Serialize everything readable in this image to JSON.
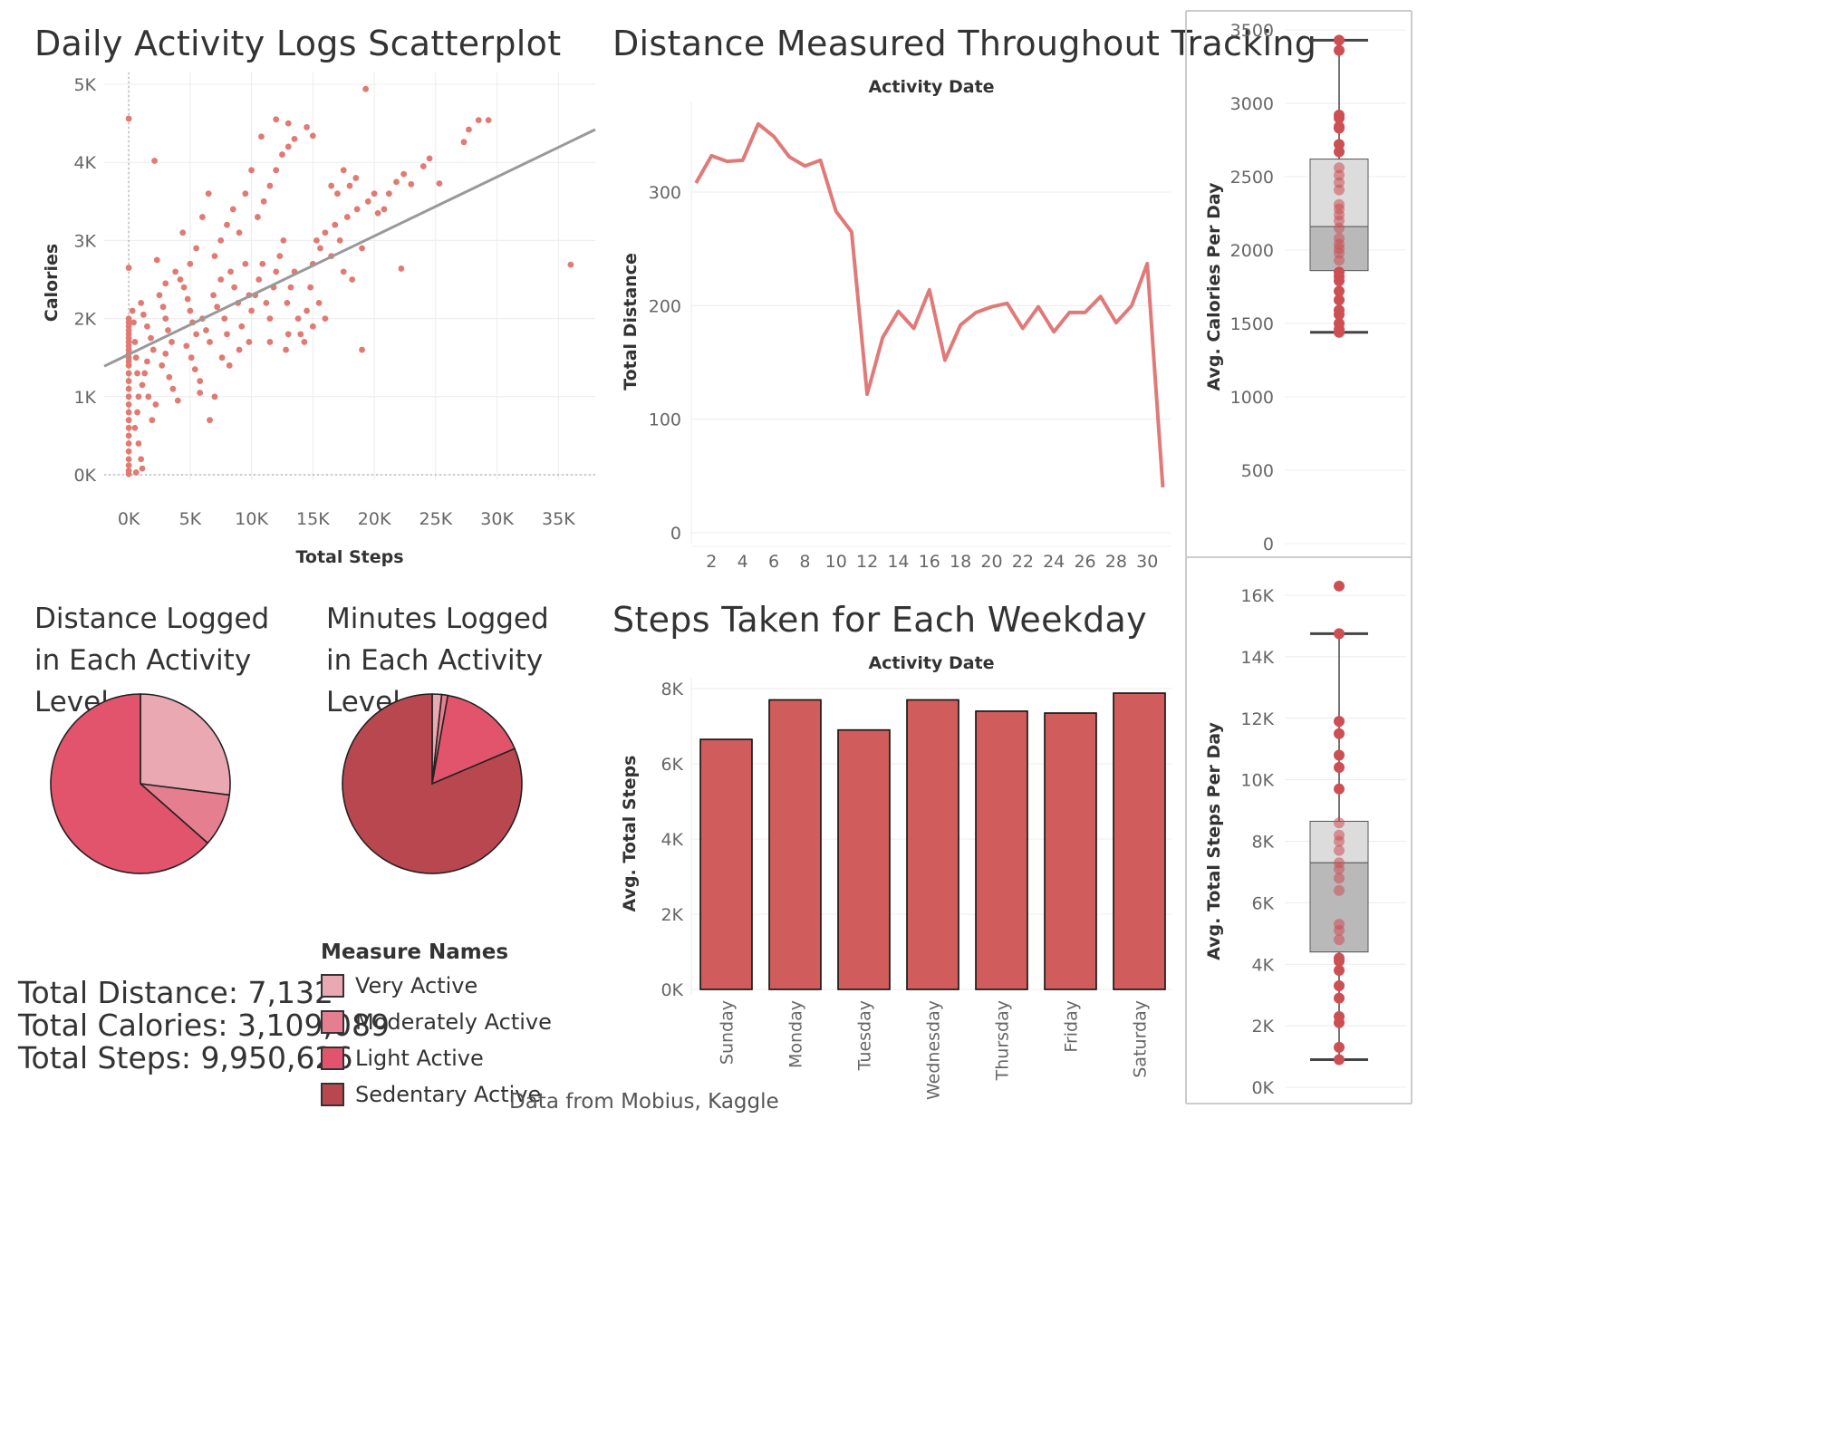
{
  "titles": {
    "scatter": "Daily Activity Logs Scatterplot",
    "line": "Distance Measured Throughout Tracking",
    "pie_distance": "Distance Logged in Each Activity Level",
    "pie_minutes": "Minutes Logged in Each Activity Level",
    "bar": "Steps Taken for Each Weekday"
  },
  "kpis": {
    "distance": "Total Distance: 7,132",
    "calories": "Total Calories: 3,109,089",
    "steps": "Total Steps: 9,950,626"
  },
  "legend": {
    "title": "Measure Names",
    "items": [
      {
        "label": "Very Active",
        "color": "#E9A8B2"
      },
      {
        "label": "Moderately Active",
        "color": "#E57F8F"
      },
      {
        "label": "Light Active",
        "color": "#E2546B"
      },
      {
        "label": "Sedentary Active",
        "color": "#B8474F"
      }
    ]
  },
  "footer": "Data from Mobius, Kaggle",
  "chart_data": [
    {
      "id": "scatter",
      "type": "scatter",
      "title": "Daily Activity Logs Scatterplot",
      "xlabel": "Total Steps",
      "ylabel": "Calories",
      "xlim": [
        -2000,
        38000
      ],
      "ylim": [
        0,
        5000
      ],
      "x_ticks": [
        {
          "v": 0,
          "l": "0K"
        },
        {
          "v": 5000,
          "l": "5K"
        },
        {
          "v": 10000,
          "l": "10K"
        },
        {
          "v": 15000,
          "l": "15K"
        },
        {
          "v": 20000,
          "l": "20K"
        },
        {
          "v": 25000,
          "l": "25K"
        },
        {
          "v": 30000,
          "l": "30K"
        },
        {
          "v": 35000,
          "l": "35K"
        }
      ],
      "y_ticks": [
        {
          "v": 0,
          "l": "0K"
        },
        {
          "v": 1000,
          "l": "1K"
        },
        {
          "v": 2000,
          "l": "2K"
        },
        {
          "v": 3000,
          "l": "3K"
        },
        {
          "v": 4000,
          "l": "4K"
        },
        {
          "v": 5000,
          "l": "5K"
        }
      ],
      "trend_line": [
        [
          -2000,
          1390
        ],
        [
          38000,
          4420
        ]
      ],
      "color": "#E07A72",
      "points": [
        [
          0,
          4560
        ],
        [
          0,
          2650
        ],
        [
          0,
          2000
        ],
        [
          0,
          1950
        ],
        [
          0,
          1900
        ],
        [
          0,
          1850
        ],
        [
          0,
          1800
        ],
        [
          0,
          1750
        ],
        [
          0,
          1700
        ],
        [
          0,
          1650
        ],
        [
          0,
          1600
        ],
        [
          0,
          1550
        ],
        [
          0,
          1500
        ],
        [
          0,
          1450
        ],
        [
          0,
          1400
        ],
        [
          0,
          1300
        ],
        [
          0,
          1200
        ],
        [
          0,
          1100
        ],
        [
          0,
          1000
        ],
        [
          0,
          900
        ],
        [
          0,
          800
        ],
        [
          0,
          700
        ],
        [
          0,
          600
        ],
        [
          0,
          500
        ],
        [
          0,
          400
        ],
        [
          0,
          300
        ],
        [
          0,
          200
        ],
        [
          0,
          120
        ],
        [
          0,
          50
        ],
        [
          0,
          10
        ],
        [
          300,
          2100
        ],
        [
          400,
          1950
        ],
        [
          500,
          1700
        ],
        [
          600,
          1500
        ],
        [
          700,
          1300
        ],
        [
          800,
          1000
        ],
        [
          700,
          800
        ],
        [
          500,
          600
        ],
        [
          800,
          400
        ],
        [
          1000,
          200
        ],
        [
          1100,
          80
        ],
        [
          600,
          30
        ],
        [
          1000,
          2200
        ],
        [
          1200,
          2050
        ],
        [
          1500,
          1900
        ],
        [
          1800,
          1750
        ],
        [
          2000,
          1600
        ],
        [
          1500,
          1450
        ],
        [
          1300,
          1300
        ],
        [
          1100,
          1150
        ],
        [
          1600,
          1000
        ],
        [
          2200,
          900
        ],
        [
          1900,
          700
        ],
        [
          2100,
          4020
        ],
        [
          2500,
          2300
        ],
        [
          2800,
          2150
        ],
        [
          3000,
          2000
        ],
        [
          3200,
          1850
        ],
        [
          3500,
          1700
        ],
        [
          3000,
          1550
        ],
        [
          2700,
          1400
        ],
        [
          3300,
          1250
        ],
        [
          3600,
          1100
        ],
        [
          4000,
          950
        ],
        [
          3000,
          2450
        ],
        [
          3800,
          2600
        ],
        [
          2300,
          2750
        ],
        [
          4200,
          2500
        ],
        [
          4500,
          2400
        ],
        [
          4800,
          2250
        ],
        [
          5000,
          2100
        ],
        [
          5200,
          1950
        ],
        [
          5500,
          1800
        ],
        [
          4700,
          1650
        ],
        [
          5100,
          1500
        ],
        [
          5400,
          1350
        ],
        [
          5800,
          1200
        ],
        [
          5000,
          2700
        ],
        [
          5500,
          2900
        ],
        [
          4400,
          3100
        ],
        [
          6000,
          3300
        ],
        [
          6500,
          3600
        ],
        [
          5800,
          1050
        ],
        [
          6600,
          700
        ],
        [
          7000,
          1000
        ],
        [
          6000,
          2000
        ],
        [
          6300,
          1850
        ],
        [
          6600,
          1700
        ],
        [
          6900,
          2300
        ],
        [
          7200,
          2150
        ],
        [
          7500,
          2500
        ],
        [
          7800,
          2000
        ],
        [
          8000,
          1800
        ],
        [
          8300,
          2600
        ],
        [
          8600,
          2400
        ],
        [
          8900,
          2200
        ],
        [
          9200,
          1900
        ],
        [
          9500,
          2700
        ],
        [
          9800,
          2300
        ],
        [
          7000,
          2800
        ],
        [
          7500,
          3000
        ],
        [
          8000,
          3200
        ],
        [
          8500,
          3400
        ],
        [
          9000,
          3100
        ],
        [
          9500,
          3600
        ],
        [
          10000,
          3900
        ],
        [
          7600,
          1500
        ],
        [
          8200,
          1400
        ],
        [
          9000,
          1600
        ],
        [
          9800,
          1700
        ],
        [
          10000,
          2100
        ],
        [
          10300,
          2300
        ],
        [
          10600,
          2500
        ],
        [
          10900,
          2700
        ],
        [
          11200,
          2200
        ],
        [
          11500,
          2000
        ],
        [
          11800,
          2400
        ],
        [
          12000,
          2600
        ],
        [
          12300,
          2800
        ],
        [
          12600,
          3000
        ],
        [
          12900,
          2200
        ],
        [
          13200,
          2400
        ],
        [
          13500,
          2600
        ],
        [
          13800,
          2000
        ],
        [
          14000,
          1800
        ],
        [
          10500,
          3300
        ],
        [
          11000,
          3500
        ],
        [
          11500,
          3700
        ],
        [
          12000,
          3900
        ],
        [
          12500,
          4100
        ],
        [
          13000,
          4200
        ],
        [
          13500,
          4300
        ],
        [
          10800,
          4330
        ],
        [
          12000,
          4550
        ],
        [
          13000,
          4500
        ],
        [
          14500,
          4450
        ],
        [
          15000,
          4340
        ],
        [
          12800,
          1600
        ],
        [
          11500,
          1700
        ],
        [
          13000,
          1800
        ],
        [
          14300,
          1700
        ],
        [
          14500,
          2100
        ],
        [
          14800,
          2400
        ],
        [
          15000,
          2700
        ],
        [
          15300,
          3000
        ],
        [
          15600,
          2900
        ],
        [
          16000,
          3100
        ],
        [
          16500,
          2800
        ],
        [
          16800,
          3200
        ],
        [
          17200,
          3000
        ],
        [
          17500,
          2600
        ],
        [
          17800,
          3300
        ],
        [
          18200,
          2500
        ],
        [
          18600,
          3400
        ],
        [
          19000,
          2900
        ],
        [
          15000,
          1900
        ],
        [
          15500,
          2200
        ],
        [
          16000,
          2000
        ],
        [
          16500,
          3700
        ],
        [
          17000,
          3600
        ],
        [
          17500,
          3900
        ],
        [
          18000,
          3700
        ],
        [
          18500,
          3800
        ],
        [
          19000,
          1600
        ],
        [
          19500,
          3500
        ],
        [
          20000,
          3600
        ],
        [
          20300,
          3350
        ],
        [
          20800,
          3400
        ],
        [
          21200,
          3600
        ],
        [
          21800,
          3750
        ],
        [
          22400,
          3850
        ],
        [
          23000,
          3720
        ],
        [
          19300,
          4940
        ],
        [
          24000,
          3950
        ],
        [
          24500,
          4050
        ],
        [
          22200,
          2640
        ],
        [
          25300,
          3730
        ],
        [
          27300,
          4260
        ],
        [
          27700,
          4420
        ],
        [
          28500,
          4540
        ],
        [
          29300,
          4540
        ],
        [
          36000,
          2690
        ]
      ]
    },
    {
      "id": "line",
      "type": "line",
      "title": "Distance Measured Throughout Tracking",
      "top_axis_label": "Activity Date",
      "ylabel": "Total Distance",
      "xlim": [
        0.7,
        31.5
      ],
      "ylim": [
        -10,
        380
      ],
      "x_ticks": [
        2,
        4,
        6,
        8,
        10,
        12,
        14,
        16,
        18,
        20,
        22,
        24,
        26,
        28,
        30
      ],
      "y_ticks": [
        0,
        100,
        200,
        300
      ],
      "color": "#E07A78",
      "x": [
        1,
        2,
        3,
        4,
        5,
        6,
        7,
        8,
        9,
        10,
        11,
        12,
        13,
        14,
        15,
        16,
        17,
        18,
        19,
        20,
        21,
        22,
        23,
        24,
        25,
        26,
        27,
        28,
        29,
        30,
        31
      ],
      "y": [
        308,
        332,
        327,
        328,
        360,
        349,
        331,
        323,
        328,
        283,
        265,
        122,
        172,
        195,
        180,
        214,
        152,
        183,
        194,
        199,
        202,
        180,
        199,
        177,
        194,
        194,
        208,
        185,
        200,
        237,
        40
      ]
    },
    {
      "id": "pie_distance",
      "type": "pie",
      "title": "Distance Logged in Each Activity Level",
      "labels": [
        "Very Active",
        "Moderately Active",
        "Light Active"
      ],
      "values": [
        27,
        9.5,
        63.5
      ],
      "colors": [
        "#E9A8B2",
        "#E57F8F",
        "#E2546B"
      ]
    },
    {
      "id": "pie_minutes",
      "type": "pie",
      "title": "Minutes Logged in Each Activity Level",
      "labels": [
        "Very Active",
        "Moderately Active",
        "Light Active",
        "Sedentary Active"
      ],
      "values": [
        1.7,
        1.1,
        15.8,
        81.4
      ],
      "colors": [
        "#E9A8B2",
        "#E57F8F",
        "#E2546B",
        "#B8474F"
      ]
    },
    {
      "id": "bar",
      "type": "bar",
      "title": "Steps Taken for Each Weekday",
      "top_axis_label": "Activity Date",
      "ylabel": "Avg. Total Steps",
      "ylim": [
        0,
        8200
      ],
      "y_ticks": [
        {
          "v": 0,
          "l": "0K"
        },
        {
          "v": 2000,
          "l": "2K"
        },
        {
          "v": 4000,
          "l": "4K"
        },
        {
          "v": 6000,
          "l": "6K"
        },
        {
          "v": 8000,
          "l": "8K"
        }
      ],
      "categories": [
        "Sunday",
        "Monday",
        "Tuesday",
        "Wednesday",
        "Thursday",
        "Friday",
        "Saturday"
      ],
      "values": [
        6650,
        7700,
        6900,
        7700,
        7400,
        7350,
        7880
      ],
      "color": "#D05D5B"
    },
    {
      "id": "box_calories",
      "type": "scatter",
      "ylabel": "Avg. Calories Per Day",
      "ylim": [
        -30,
        3600
      ],
      "y_ticks": [
        {
          "v": 0,
          "l": "0"
        },
        {
          "v": 500,
          "l": "500"
        },
        {
          "v": 1000,
          "l": "1000"
        },
        {
          "v": 1500,
          "l": "1500"
        },
        {
          "v": 2000,
          "l": "2000"
        },
        {
          "v": 2500,
          "l": "2500"
        },
        {
          "v": 3000,
          "l": "3000"
        },
        {
          "v": 3500,
          "l": "3500"
        }
      ],
      "box": {
        "whisker_low": 1440,
        "q1": 1860,
        "median": 2160,
        "q3": 2620,
        "whisker_high": 3430
      },
      "color": "#CC4F53",
      "values": [
        1440,
        1460,
        1500,
        1560,
        1590,
        1660,
        1720,
        1790,
        1820,
        1850,
        1930,
        1980,
        2010,
        2040,
        2080,
        2150,
        2200,
        2240,
        2280,
        2310,
        2410,
        2460,
        2510,
        2560,
        2670,
        2720,
        2830,
        2840,
        2900,
        2920,
        3360,
        3430
      ]
    },
    {
      "id": "box_steps",
      "type": "scatter",
      "ylabel": "Avg. Total Steps Per Day",
      "ylim": [
        -200,
        17000
      ],
      "y_ticks": [
        {
          "v": 0,
          "l": "0K"
        },
        {
          "v": 2000,
          "l": "2K"
        },
        {
          "v": 4000,
          "l": "4K"
        },
        {
          "v": 6000,
          "l": "6K"
        },
        {
          "v": 8000,
          "l": "8K"
        },
        {
          "v": 10000,
          "l": "10K"
        },
        {
          "v": 12000,
          "l": "12K"
        },
        {
          "v": 14000,
          "l": "14K"
        },
        {
          "v": 16000,
          "l": "16K"
        }
      ],
      "box": {
        "whisker_low": 900,
        "q1": 4400,
        "median": 7300,
        "q3": 8650,
        "whisker_high": 14750
      },
      "color": "#CC4F53",
      "values": [
        900,
        1300,
        2100,
        2300,
        2900,
        3300,
        3800,
        4100,
        4200,
        4800,
        5100,
        5300,
        6400,
        6800,
        7100,
        7300,
        7700,
        8000,
        8200,
        8600,
        9700,
        10400,
        10800,
        11500,
        11900,
        14750,
        16300
      ]
    }
  ]
}
